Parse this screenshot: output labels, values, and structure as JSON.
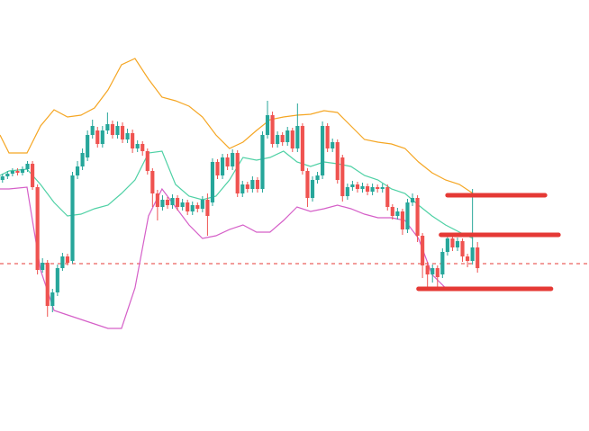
{
  "chart_data": {
    "type": "candlestick",
    "xlim": [
      -0.5,
      117.3
    ],
    "ylim": [
      0,
      479
    ],
    "up_color": "#26a69a",
    "down_color": "#ef5350",
    "candles": [
      [
        279,
        286,
        276,
        283
      ],
      [
        283,
        289,
        280,
        286
      ],
      [
        286,
        292,
        283,
        289
      ],
      [
        289,
        292,
        284,
        287
      ],
      [
        287,
        294,
        284,
        291
      ],
      [
        291,
        300,
        288,
        297
      ],
      [
        297,
        300,
        268,
        271
      ],
      [
        271,
        274,
        174,
        179
      ],
      [
        179,
        192,
        176,
        187
      ],
      [
        187,
        190,
        127,
        139
      ],
      [
        139,
        158,
        132,
        154
      ],
      [
        154,
        185,
        150,
        181
      ],
      [
        181,
        198,
        178,
        194
      ],
      [
        194,
        197,
        184,
        187
      ],
      [
        189,
        288,
        186,
        284
      ],
      [
        284,
        300,
        280,
        294
      ],
      [
        294,
        314,
        290,
        309
      ],
      [
        304,
        334,
        300,
        329
      ],
      [
        329,
        346,
        325,
        339
      ],
      [
        334,
        338,
        315,
        319
      ],
      [
        319,
        339,
        315,
        334
      ],
      [
        334,
        354,
        330,
        341
      ],
      [
        341,
        345,
        325,
        329
      ],
      [
        329,
        344,
        325,
        339
      ],
      [
        339,
        343,
        320,
        324
      ],
      [
        324,
        336,
        320,
        331
      ],
      [
        331,
        335,
        309,
        314
      ],
      [
        314,
        323,
        310,
        319
      ],
      [
        319,
        322,
        306,
        311
      ],
      [
        311,
        314,
        285,
        289
      ],
      [
        289,
        292,
        249,
        264
      ],
      [
        264,
        268,
        234,
        249
      ],
      [
        249,
        262,
        245,
        257
      ],
      [
        257,
        260,
        247,
        251
      ],
      [
        251,
        263,
        247,
        259
      ],
      [
        259,
        262,
        245,
        249
      ],
      [
        249,
        258,
        245,
        254
      ],
      [
        254,
        257,
        240,
        244
      ],
      [
        244,
        255,
        240,
        251
      ],
      [
        251,
        254,
        243,
        247
      ],
      [
        247,
        261,
        243,
        257
      ],
      [
        257,
        264,
        217,
        239
      ],
      [
        254,
        303,
        250,
        299
      ],
      [
        299,
        302,
        280,
        284
      ],
      [
        284,
        308,
        280,
        304
      ],
      [
        304,
        308,
        290,
        294
      ],
      [
        294,
        313,
        290,
        309
      ],
      [
        309,
        312,
        260,
        264
      ],
      [
        264,
        278,
        260,
        274
      ],
      [
        274,
        277,
        265,
        269
      ],
      [
        269,
        283,
        265,
        279
      ],
      [
        279,
        282,
        265,
        269
      ],
      [
        269,
        333,
        265,
        329
      ],
      [
        329,
        367,
        325,
        351
      ],
      [
        351,
        355,
        315,
        319
      ],
      [
        319,
        333,
        315,
        329
      ],
      [
        329,
        332,
        317,
        321
      ],
      [
        321,
        338,
        317,
        334
      ],
      [
        334,
        337,
        310,
        314
      ],
      [
        314,
        364,
        310,
        339
      ],
      [
        339,
        342,
        285,
        289
      ],
      [
        289,
        292,
        249,
        259
      ],
      [
        259,
        283,
        255,
        279
      ],
      [
        279,
        288,
        275,
        284
      ],
      [
        284,
        344,
        280,
        339
      ],
      [
        339,
        342,
        310,
        314
      ],
      [
        314,
        325,
        310,
        321
      ],
      [
        321,
        324,
        275,
        279
      ],
      [
        304,
        307,
        255,
        261
      ],
      [
        261,
        275,
        257,
        271
      ],
      [
        271,
        278,
        267,
        274
      ],
      [
        274,
        277,
        265,
        269
      ],
      [
        269,
        276,
        265,
        272
      ],
      [
        272,
        275,
        262,
        266
      ],
      [
        266,
        275,
        262,
        271
      ],
      [
        271,
        274,
        265,
        269
      ],
      [
        269,
        275,
        265,
        271
      ],
      [
        271,
        274,
        245,
        249
      ],
      [
        249,
        252,
        235,
        239
      ],
      [
        239,
        248,
        235,
        244
      ],
      [
        244,
        247,
        218,
        224
      ],
      [
        224,
        258,
        220,
        254
      ],
      [
        254,
        264,
        250,
        259
      ],
      [
        259,
        262,
        210,
        217
      ],
      [
        217,
        220,
        170,
        184
      ],
      [
        184,
        188,
        159,
        174
      ],
      [
        174,
        185,
        165,
        181
      ],
      [
        181,
        184,
        160,
        171
      ],
      [
        174,
        203,
        170,
        199
      ],
      [
        199,
        218,
        195,
        214
      ],
      [
        214,
        217,
        200,
        204
      ],
      [
        204,
        215,
        200,
        211
      ],
      [
        211,
        214,
        188,
        194
      ],
      [
        194,
        197,
        182,
        189
      ],
      [
        189,
        269,
        185,
        204
      ],
      [
        204,
        210,
        176,
        181
      ]
    ],
    "bands": {
      "x": [
        -0.5,
        1.3,
        4.9,
        7.6,
        10.3,
        13.0,
        15.7,
        18.4,
        21.1,
        23.8,
        26.5,
        29.2,
        31.9,
        34.6,
        37.3,
        40.0,
        42.7,
        45.4,
        48.1,
        50.8,
        53.5,
        56.2,
        58.9,
        61.6,
        64.3,
        67.0,
        69.7,
        72.4,
        75.1,
        77.8,
        80.5,
        83.2,
        85.9,
        88.6,
        91.4,
        94.1
      ],
      "series": [
        {
          "color": "#f5a623",
          "values": [
            329,
            309,
            309,
            339,
            357,
            349,
            351,
            359,
            379,
            407,
            414,
            391,
            371,
            367,
            361,
            349,
            329,
            314,
            321,
            334,
            346,
            349,
            351,
            352,
            356,
            354,
            339,
            324,
            321,
            319,
            314,
            299,
            287,
            279,
            274,
            264
          ]
        },
        {
          "color": "#4fd1a5",
          "values": [
            284,
            289,
            291,
            274,
            254,
            239,
            241,
            247,
            251,
            264,
            279,
            309,
            311,
            274,
            261,
            257,
            261,
            279,
            304,
            301,
            304,
            311,
            299,
            294,
            299,
            297,
            294,
            284,
            279,
            269,
            264,
            251,
            239,
            229,
            221,
            214
          ]
        },
        {
          "color": "#d55fc8",
          "values": [
            269,
            269,
            271,
            179,
            134,
            129,
            124,
            119,
            114,
            114,
            159,
            239,
            269,
            249,
            229,
            214,
            217,
            224,
            229,
            221,
            221,
            234,
            249,
            244,
            247,
            251,
            247,
            241,
            237,
            237,
            234,
            214,
            174,
            159,
            157,
            159
          ]
        }
      ]
    },
    "levels": [
      {
        "value": 262,
        "x": [
          89.0,
          108.5
        ],
        "color": "#e53935"
      },
      {
        "value": 218,
        "x": [
          87.7,
          111.2
        ],
        "color": "#e53935"
      },
      {
        "value": 158,
        "x": [
          83.2,
          109.7
        ],
        "color": "#e53935"
      }
    ],
    "price_line": {
      "value": 186,
      "color": "#e53935"
    }
  }
}
